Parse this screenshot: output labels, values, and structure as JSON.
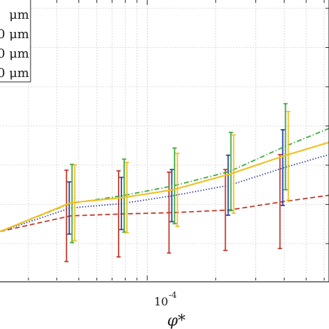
{
  "chart_data": {
    "type": "line",
    "x_scale": "log",
    "xlabel": "φ*",
    "ylabel": "",
    "x_tick_label": "10",
    "x_tick_exponent": "-4",
    "x": [
      4.6e-05,
      7.8e-05,
      0.00013,
      0.00023,
      0.0004
    ],
    "series": [
      {
        "name": "0 μm",
        "color": "#c0392b",
        "dash": "dashed",
        "values": [
          0.24,
          0.27,
          0.29,
          0.33,
          0.46
        ],
        "errors": [
          0.7,
          0.66,
          0.62,
          0.62,
          0.72
        ]
      },
      {
        "name": "0 μm",
        "color": "#2a3f9e",
        "dash": "dotted",
        "values": [
          0.36,
          0.43,
          0.55,
          0.71,
          0.98
        ],
        "errors": [
          0.4,
          0.4,
          0.4,
          0.46,
          0.58
        ]
      },
      {
        "name": "0 μm",
        "color": "#3caa3c",
        "dash": "dashdot",
        "values": [
          0.43,
          0.55,
          0.7,
          0.92,
          1.3
        ],
        "errors": [
          0.6,
          0.56,
          0.58,
          0.6,
          0.66
        ]
      },
      {
        "name": "",
        "color": "#f2c01e",
        "dash": "solid",
        "values": [
          0.44,
          0.52,
          0.64,
          0.88,
          1.16
        ],
        "errors": [
          0.58,
          0.54,
          0.56,
          0.6,
          0.68
        ]
      }
    ],
    "legend_entries": [
      "μm",
      "0 μm",
      "0 μm",
      "0 μm"
    ],
    "legend_colors": [
      "#3caa3c",
      "#3caa3c",
      "#f2c01e",
      "#2a3f9e"
    ],
    "legend_position": "top-left",
    "grid": true
  }
}
